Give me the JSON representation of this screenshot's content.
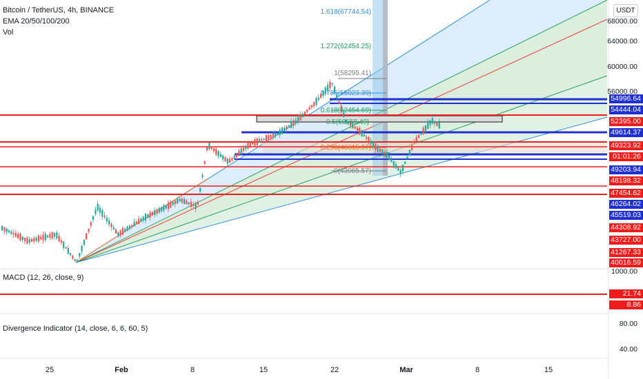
{
  "legend": {
    "symbol_line": "Bitcoin / TetherUS, 4h, BINANCE",
    "ema_line": "EMA 20/50/100/200",
    "vol_line": "Vol"
  },
  "currency_button": "USDT",
  "price_axis": {
    "labels": [
      "68000.00",
      "64000.00",
      "60000.00",
      "56000.00",
      "1000.00"
    ],
    "tags": [
      {
        "text": "54996.64",
        "color": "#1f2fd0"
      },
      {
        "text": "54444.04",
        "color": "#1f2fd0"
      },
      {
        "text": "52395.00",
        "color": "#ef1c1c"
      },
      {
        "text": "49614.37",
        "color": "#1f2fd0"
      },
      {
        "text": "49323.92",
        "color": "#ef1c1c"
      },
      {
        "text": "01:01:26",
        "color": "#ef1c1c"
      },
      {
        "text": "49203.94",
        "color": "#1f2fd0"
      },
      {
        "text": "48198.32",
        "color": "#ef1c1c"
      },
      {
        "text": "47454.62",
        "color": "#ef1c1c"
      },
      {
        "text": "46264.02",
        "color": "#1f2fd0"
      },
      {
        "text": "45519.03",
        "color": "#1f2fd0"
      },
      {
        "text": "44308.92",
        "color": "#ef1c1c"
      },
      {
        "text": "43727.00",
        "color": "#ef1c1c"
      },
      {
        "text": "41267.33",
        "color": "#ef1c1c"
      },
      {
        "text": "40016.59",
        "color": "#ef1c1c"
      }
    ]
  },
  "fib_labels": [
    {
      "text": "1.618(67744.54)",
      "color": "#2f8fd8"
    },
    {
      "text": "1.272(62454.25)",
      "color": "#22a05a"
    },
    {
      "text": "1(58295.41)",
      "color": "#787b86"
    },
    {
      "text": "0.786(55023.39)",
      "color": "#2f8fd8"
    },
    {
      "text": "0.618(52454.69)",
      "color": "#22a05a"
    },
    {
      "text": "0.5(50658.49)",
      "color": "#22a05a"
    },
    {
      "text": "0.236(46615.97)",
      "color": "#ef6c1c"
    },
    {
      "text": "0(43065.57)",
      "color": "#787b86"
    }
  ],
  "macd": {
    "legend": "MACD (12, 26, close, 9)",
    "tags": [
      {
        "text": "21.74",
        "color": "#ef1c1c"
      },
      {
        "text": "8.86",
        "color": "#ef1c1c"
      }
    ]
  },
  "divergence": {
    "legend": "Divergence Indicator (14, close, 6, 6, 60, 5)",
    "labels": [
      "80.00",
      "40.00"
    ]
  },
  "time_axis": {
    "labels": [
      "25",
      "Feb",
      "8",
      "15",
      "22",
      "Mar",
      "8",
      "15"
    ]
  },
  "colors": {
    "up_candle": "#26a69a",
    "down_candle": "#ef5350",
    "support_line": "#1f2fd0",
    "resistance_line": "#ef1c1c"
  }
}
